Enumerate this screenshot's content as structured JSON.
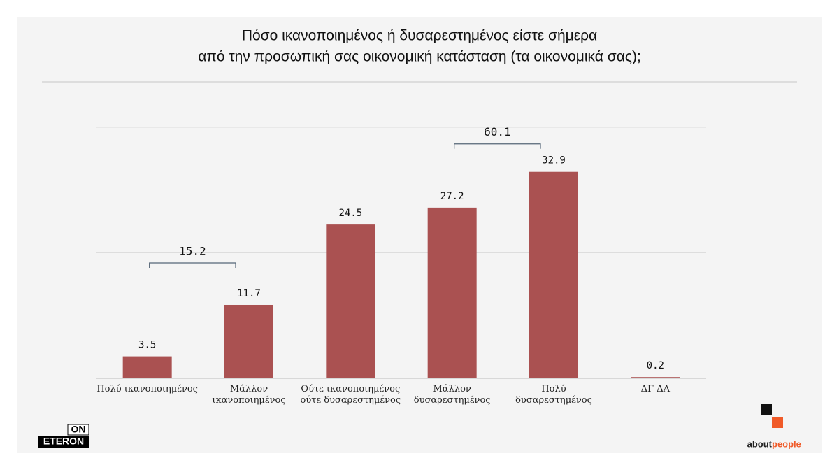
{
  "chart_data": {
    "type": "bar",
    "title": [
      "Πόσο ικανοποιημένος ή δυσαρεστημένος είστε σήμερα",
      "από την προσωπική σας οικονομική κατάσταση (τα οικονομικά σας);"
    ],
    "categories": [
      "Πολύ ικανοποιημένος",
      "Μάλλον\nικανοποιημένος",
      "Ούτε ικανοποιημένος\nούτε δυσαρεστημένος",
      "Μάλλον\nδυσαρεστημένος",
      "Πολύ\nδυσαρεστημένος",
      "ΔΓ ΔΑ"
    ],
    "values": [
      3.5,
      11.7,
      24.5,
      27.2,
      32.9,
      0.2
    ],
    "color": "#aa5151",
    "ylim": [
      0,
      40
    ],
    "gridlines": [
      0,
      20,
      40
    ],
    "sums": [
      {
        "value": 15.2,
        "of": [
          0,
          1
        ]
      },
      {
        "value": 60.1,
        "of": [
          3,
          4
        ]
      }
    ]
  },
  "logos": {
    "left": [
      "ON",
      "ETERON"
    ],
    "right": [
      "about",
      "people"
    ]
  }
}
